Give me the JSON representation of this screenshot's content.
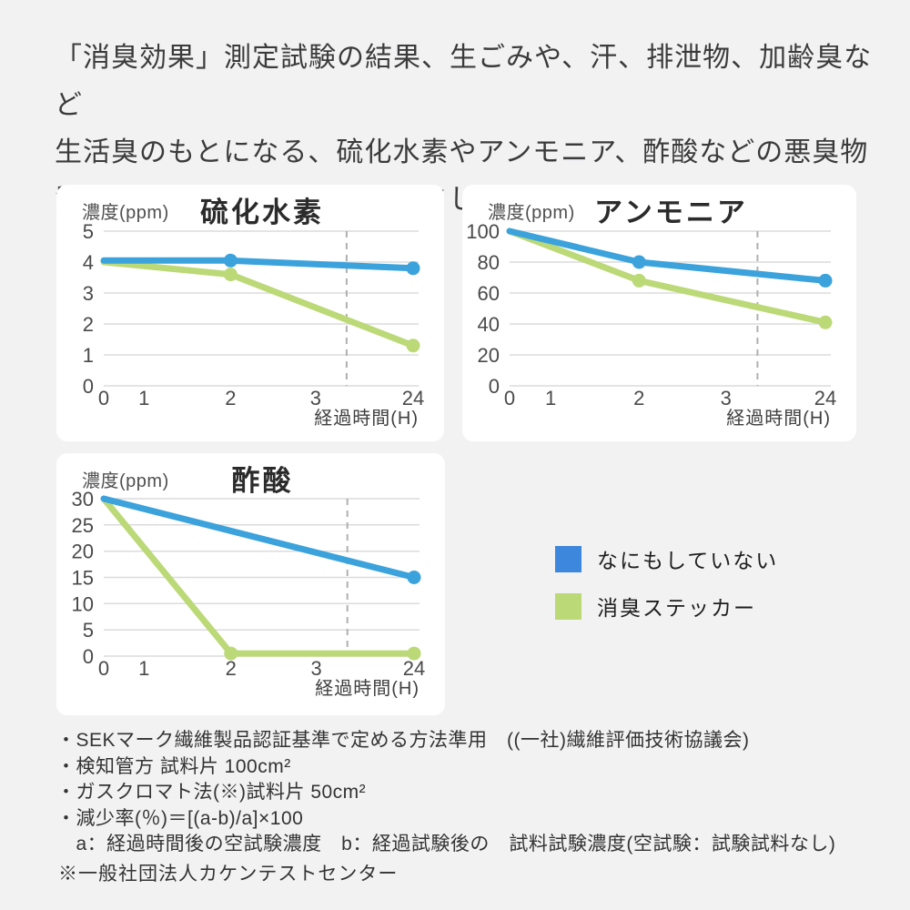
{
  "page": {
    "background": "#F2F2F3",
    "panel_background": "#FFFFFF"
  },
  "header": {
    "lines": [
      "「消臭効果」測定試験の結果、生ごみや、汗、排泄物、加齢臭など",
      "生活臭のもとになる、硫化水素やアンモニア、酢酸などの悪臭物",
      "質に対して消臭効果を発揮しました。"
    ]
  },
  "chart_data": [
    {
      "type": "line",
      "title": "硫化水素",
      "ylabel": "濃度(ppm)",
      "xlabel": "経過時間(H)",
      "x_categories": [
        "0",
        "1",
        "2",
        "3",
        "24"
      ],
      "axis_break_between": [
        "3",
        "24"
      ],
      "grid": true,
      "y_ticks": [
        5,
        4,
        3,
        2,
        1,
        0
      ],
      "ylim": [
        0,
        5
      ],
      "series": [
        {
          "name": "なにもしていない",
          "color": "#3BA2DC",
          "points": [
            [
              0,
              4.05
            ],
            [
              2,
              4.05
            ],
            [
              24,
              3.8
            ]
          ],
          "markers": [
            2,
            24
          ]
        },
        {
          "name": "消臭ステッカー",
          "color": "#BCD978",
          "points": [
            [
              0,
              4.0
            ],
            [
              2,
              3.6
            ],
            [
              24,
              1.3
            ]
          ],
          "markers": [
            2,
            24
          ]
        }
      ]
    },
    {
      "type": "line",
      "title": "アンモニア",
      "ylabel": "濃度(ppm)",
      "xlabel": "経過時間(H)",
      "x_categories": [
        "0",
        "1",
        "2",
        "3",
        "24"
      ],
      "axis_break_between": [
        "3",
        "24"
      ],
      "grid": true,
      "y_ticks": [
        100,
        80,
        60,
        40,
        20,
        0
      ],
      "ylim": [
        0,
        100
      ],
      "series": [
        {
          "name": "なにもしていない",
          "color": "#3BA2DC",
          "points": [
            [
              0,
              100
            ],
            [
              2,
              80
            ],
            [
              24,
              68
            ]
          ],
          "markers": [
            2,
            24
          ]
        },
        {
          "name": "消臭ステッカー",
          "color": "#BCD978",
          "points": [
            [
              0,
              100
            ],
            [
              2,
              68
            ],
            [
              24,
              41
            ]
          ],
          "markers": [
            2,
            24
          ]
        }
      ]
    },
    {
      "type": "line",
      "title": "酢酸",
      "ylabel": "濃度(ppm)",
      "xlabel": "経過時間(H)",
      "x_categories": [
        "0",
        "1",
        "2",
        "3",
        "24"
      ],
      "axis_break_between": [
        "3",
        "24"
      ],
      "grid": true,
      "y_ticks": [
        30,
        25,
        20,
        15,
        10,
        5,
        0
      ],
      "ylim": [
        0,
        30
      ],
      "series": [
        {
          "name": "なにもしていない",
          "color": "#3BA2DC",
          "points": [
            [
              0,
              30
            ],
            [
              24,
              15
            ]
          ],
          "markers": [
            24
          ]
        },
        {
          "name": "消臭ステッカー",
          "color": "#BCD978",
          "points": [
            [
              0,
              30
            ],
            [
              2,
              0.5
            ],
            [
              24,
              0.5
            ]
          ],
          "markers": [
            2,
            24
          ]
        }
      ]
    }
  ],
  "legend": {
    "items": [
      {
        "label": "なにもしていない",
        "color": "#3D87DD"
      },
      {
        "label": "消臭ステッカー",
        "color": "#BCD978"
      }
    ]
  },
  "footnotes": {
    "lines": [
      "・SEKマーク繊維製品認証基準で定める方法準用　((一社)繊維評価技術協議会)",
      "・検知管方 試料片 100cm²",
      "・ガスクロマト法(※)試料片 50cm²",
      "・減少率(％)＝[(a-b)/a]×100",
      "　a：経過時間後の空試験濃度　b：経過試験後の　試料試験濃度(空試験：試験試料なし)"
    ],
    "footer_note": "※一般社団法人カケンテストセンター"
  }
}
